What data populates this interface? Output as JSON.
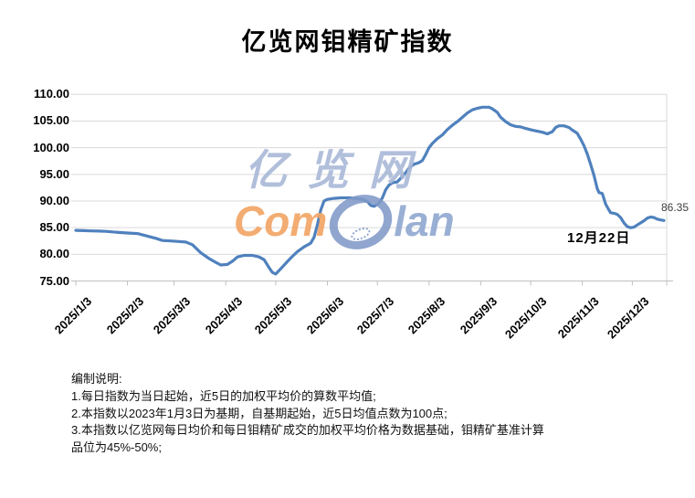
{
  "title": "亿览网钼精矿指数",
  "watermark": {
    "zh": "亿览网",
    "brand_com": "Com",
    "brand_lan": "lan"
  },
  "annotation": {
    "text": "12月22日"
  },
  "last_value_label": "86.35",
  "notes": {
    "heading": "编制说明:",
    "lines": [
      "1.每日指数为当日起始，近5日的加权平均价的算数平均值;",
      "2.本指数以2023年1月3日为基期，自基期起始，近5日均值点数为100点;",
      "3.本指数以亿览网每日均价和每日钼精矿成交的加权平均价格为数据基础，钼精矿基准计算",
      "品位为45%-50%;"
    ]
  },
  "chart_data": {
    "type": "line",
    "title": "亿览网钼精矿指数",
    "xlabel": "",
    "ylabel": "",
    "x_unit": "days since 2025/1/3",
    "x_range": [
      0,
      356
    ],
    "ylim": [
      75,
      110
    ],
    "grid": "horizontal",
    "legend": "none",
    "line_color": "#4F81BD",
    "grid_color": "#d9d9d9",
    "axis_color": "#bfbfbf",
    "label_color": "#000000",
    "last_point": {
      "date": "2025/12/22",
      "value": 86.35
    },
    "yticks": {
      "values": [
        110,
        105,
        100,
        95,
        90,
        85,
        80,
        75
      ],
      "labels": [
        "110.00",
        "105.00",
        "100.00",
        "95.00",
        "90.00",
        "85.00",
        "80.00",
        "75.00"
      ]
    },
    "xticks": {
      "day_offsets": [
        0,
        31,
        59,
        90,
        120,
        151,
        181,
        212,
        243,
        273,
        304,
        334
      ],
      "labels": [
        "2025/1/3",
        "2025/2/3",
        "2025/3/3",
        "2025/4/3",
        "2025/5/3",
        "2025/6/3",
        "2025/7/3",
        "2025/8/3",
        "2025/9/3",
        "2025/10/3",
        "2025/11/3",
        "2025/12/3"
      ]
    },
    "series": [
      {
        "points": [
          [
            0,
            84.5
          ],
          [
            5,
            84.45
          ],
          [
            9,
            84.4
          ],
          [
            14,
            84.35
          ],
          [
            18,
            84.3
          ],
          [
            22,
            84.2
          ],
          [
            26,
            84.1
          ],
          [
            31,
            84.0
          ],
          [
            37,
            83.9
          ],
          [
            42,
            83.5
          ],
          [
            48,
            83.0
          ],
          [
            52,
            82.6
          ],
          [
            57,
            82.5
          ],
          [
            62,
            82.4
          ],
          [
            66,
            82.3
          ],
          [
            70,
            81.8
          ],
          [
            75,
            80.3
          ],
          [
            80,
            79.2
          ],
          [
            84,
            78.5
          ],
          [
            87,
            78.0
          ],
          [
            91,
            78.1
          ],
          [
            94,
            78.7
          ],
          [
            97,
            79.5
          ],
          [
            101,
            79.8
          ],
          [
            106,
            79.8
          ],
          [
            110,
            79.5
          ],
          [
            113,
            79.0
          ],
          [
            116,
            77.5
          ],
          [
            118,
            76.6
          ],
          [
            120,
            76.3
          ],
          [
            123,
            77.3
          ],
          [
            126,
            78.3
          ],
          [
            129,
            79.3
          ],
          [
            133,
            80.5
          ],
          [
            137,
            81.4
          ],
          [
            141,
            82.1
          ],
          [
            143,
            83.2
          ],
          [
            145,
            85.5
          ],
          [
            147,
            88.3
          ],
          [
            149,
            90.0
          ],
          [
            151,
            90.3
          ],
          [
            155,
            90.5
          ],
          [
            159,
            90.6
          ],
          [
            164,
            90.6
          ],
          [
            168,
            90.5
          ],
          [
            172,
            90.3
          ],
          [
            175,
            89.9
          ],
          [
            177,
            89.2
          ],
          [
            179,
            89.0
          ],
          [
            182,
            89.6
          ],
          [
            184,
            90.6
          ],
          [
            186,
            92.1
          ],
          [
            188,
            93.0
          ],
          [
            190,
            93.4
          ],
          [
            193,
            93.6
          ],
          [
            196,
            94.6
          ],
          [
            198,
            95.3
          ],
          [
            200,
            96.2
          ],
          [
            203,
            96.9
          ],
          [
            206,
            97.2
          ],
          [
            208,
            97.6
          ],
          [
            210,
            98.7
          ],
          [
            212,
            100.0
          ],
          [
            214,
            100.8
          ],
          [
            217,
            101.7
          ],
          [
            220,
            102.4
          ],
          [
            223,
            103.4
          ],
          [
            226,
            104.2
          ],
          [
            229,
            104.9
          ],
          [
            232,
            105.7
          ],
          [
            235,
            106.5
          ],
          [
            238,
            107.1
          ],
          [
            241,
            107.4
          ],
          [
            244,
            107.6
          ],
          [
            248,
            107.6
          ],
          [
            250,
            107.3
          ],
          [
            253,
            106.6
          ],
          [
            255,
            105.7
          ],
          [
            258,
            104.9
          ],
          [
            261,
            104.3
          ],
          [
            264,
            104.0
          ],
          [
            267,
            103.9
          ],
          [
            270,
            103.6
          ],
          [
            274,
            103.3
          ],
          [
            277,
            103.1
          ],
          [
            280,
            102.9
          ],
          [
            283,
            102.6
          ],
          [
            286,
            103.0
          ],
          [
            288,
            103.8
          ],
          [
            290,
            104.1
          ],
          [
            293,
            104.1
          ],
          [
            296,
            103.8
          ],
          [
            298,
            103.3
          ],
          [
            301,
            102.7
          ],
          [
            303,
            101.6
          ],
          [
            305,
            100.4
          ],
          [
            307,
            98.8
          ],
          [
            309,
            96.9
          ],
          [
            311,
            94.8
          ],
          [
            313,
            92.3
          ],
          [
            314,
            91.6
          ],
          [
            316,
            91.4
          ],
          [
            318,
            89.4
          ],
          [
            320,
            88.3
          ],
          [
            321,
            87.8
          ],
          [
            323,
            87.7
          ],
          [
            325,
            87.5
          ],
          [
            327,
            86.9
          ],
          [
            329,
            85.9
          ],
          [
            331,
            85.2
          ],
          [
            333,
            85.0
          ],
          [
            335,
            85.1
          ],
          [
            337,
            85.5
          ],
          [
            339,
            85.9
          ],
          [
            341,
            86.3
          ],
          [
            343,
            86.8
          ],
          [
            345,
            87.0
          ],
          [
            347,
            86.9
          ],
          [
            349,
            86.6
          ],
          [
            351,
            86.45
          ],
          [
            353,
            86.35
          ]
        ]
      }
    ],
    "annotations": [
      {
        "text": "12月22日",
        "refers_to": "last point date"
      },
      {
        "text": "86.35",
        "refers_to": "last point value"
      }
    ]
  }
}
